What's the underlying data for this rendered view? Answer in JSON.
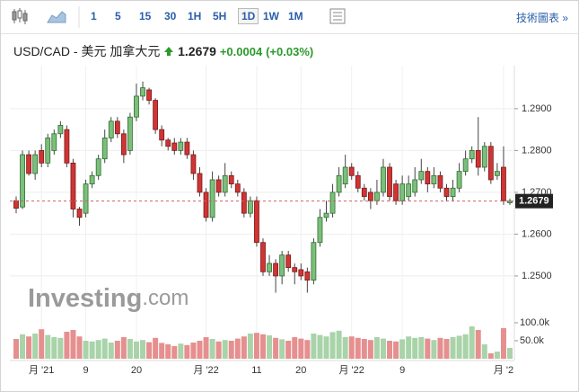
{
  "toolbar": {
    "intervals": [
      "1",
      "5",
      "15",
      "30",
      "1H",
      "5H",
      "1D",
      "1W",
      "1M"
    ],
    "selected": "1D",
    "link": "技術圖表 »"
  },
  "logo": {
    "name": "Investing",
    "suffix": ".com"
  },
  "chart_data": {
    "type": "candlestick",
    "title": "USD/CAD - 美元 加拿大元",
    "last_price": 1.2679,
    "change": "+0.0004",
    "change_percent": "(+0.03%)",
    "categories": [
      null,
      null,
      null,
      null,
      "月 '21",
      null,
      null,
      null,
      null,
      null,
      null,
      "9",
      null,
      null,
      null,
      null,
      null,
      null,
      null,
      "20",
      null,
      null,
      null,
      null,
      null,
      null,
      null,
      null,
      null,
      null,
      "月 '22",
      null,
      null,
      null,
      null,
      null,
      null,
      null,
      "11",
      null,
      null,
      null,
      null,
      null,
      null,
      "20",
      null,
      null,
      null,
      null,
      null,
      null,
      null,
      "月 '22",
      null,
      null,
      null,
      null,
      null,
      null,
      null,
      "9",
      null,
      null,
      null,
      null,
      null,
      null,
      null,
      null,
      null,
      null,
      null,
      null,
      null,
      null,
      null,
      "月 '2",
      null
    ],
    "open": [
      1.268,
      1.2665,
      1.279,
      1.2745,
      1.28,
      1.277,
      1.28,
      1.284,
      1.285,
      1.277,
      1.266,
      1.265,
      1.272,
      1.274,
      1.278,
      1.283,
      1.287,
      1.284,
      1.28,
      1.288,
      1.293,
      1.2945,
      1.292,
      1.285,
      1.2825,
      1.2818,
      1.28,
      1.282,
      1.279,
      1.2745,
      1.27,
      1.264,
      1.273,
      1.27,
      1.274,
      1.272,
      1.27,
      1.265,
      1.268,
      1.258,
      1.251,
      1.253,
      1.25,
      1.255,
      1.252,
      1.2515,
      1.251,
      1.249,
      1.258,
      1.264,
      1.265,
      1.27,
      1.272,
      1.276,
      1.274,
      1.271,
      1.27,
      1.268,
      1.27,
      1.276,
      1.272,
      1.268,
      1.269,
      1.27,
      1.273,
      1.275,
      1.272,
      1.274,
      1.271,
      1.269,
      1.271,
      1.275,
      1.278,
      1.28,
      1.276,
      1.281,
      1.274,
      1.276,
      1.2675
    ],
    "high": [
      1.269,
      1.28,
      1.28,
      1.28,
      1.2815,
      1.284,
      1.285,
      1.287,
      1.286,
      1.278,
      1.2665,
      1.273,
      1.275,
      1.279,
      1.285,
      1.288,
      1.288,
      1.285,
      1.289,
      1.296,
      1.2965,
      1.295,
      1.2925,
      1.286,
      1.283,
      1.283,
      1.283,
      1.283,
      1.28,
      1.276,
      1.271,
      1.275,
      1.274,
      1.277,
      1.275,
      1.273,
      1.271,
      1.269,
      1.269,
      1.259,
      1.255,
      1.254,
      1.256,
      1.256,
      1.253,
      1.253,
      1.252,
      1.259,
      1.266,
      1.268,
      1.272,
      1.276,
      1.279,
      1.277,
      1.275,
      1.272,
      1.271,
      1.273,
      1.278,
      1.277,
      1.273,
      1.274,
      1.274,
      1.276,
      1.278,
      1.276,
      1.276,
      1.275,
      1.272,
      1.273,
      1.277,
      1.28,
      1.281,
      1.288,
      1.282,
      1.282,
      1.277,
      1.281,
      1.2685
    ],
    "low": [
      1.265,
      1.266,
      1.274,
      1.273,
      1.276,
      1.276,
      1.279,
      1.283,
      1.276,
      1.264,
      1.262,
      1.264,
      1.271,
      1.273,
      1.277,
      1.282,
      1.283,
      1.277,
      1.279,
      1.287,
      1.292,
      1.291,
      1.284,
      1.281,
      1.28,
      1.279,
      1.279,
      1.278,
      1.273,
      1.269,
      1.263,
      1.263,
      1.269,
      1.269,
      1.271,
      1.269,
      1.264,
      1.264,
      1.257,
      1.25,
      1.25,
      1.246,
      1.248,
      1.251,
      1.248,
      1.249,
      1.246,
      1.248,
      1.257,
      1.263,
      1.264,
      1.269,
      1.271,
      1.273,
      1.27,
      1.268,
      1.266,
      1.267,
      1.269,
      1.268,
      1.267,
      1.267,
      1.268,
      1.269,
      1.272,
      1.27,
      1.271,
      1.27,
      1.268,
      1.268,
      1.27,
      1.274,
      1.277,
      1.274,
      1.275,
      1.272,
      1.273,
      1.267,
      1.267
    ],
    "close": [
      1.2662,
      1.279,
      1.2745,
      1.279,
      1.277,
      1.283,
      1.284,
      1.286,
      1.277,
      1.266,
      1.264,
      1.272,
      1.274,
      1.278,
      1.283,
      1.287,
      1.284,
      1.279,
      1.288,
      1.293,
      1.295,
      1.292,
      1.285,
      1.2825,
      1.281,
      1.28,
      1.282,
      1.279,
      1.2745,
      1.27,
      1.264,
      1.273,
      1.27,
      1.274,
      1.272,
      1.27,
      1.265,
      1.268,
      1.258,
      1.251,
      1.253,
      1.25,
      1.255,
      1.252,
      1.251,
      1.25,
      1.249,
      1.258,
      1.264,
      1.265,
      1.27,
      1.274,
      1.276,
      1.274,
      1.271,
      1.269,
      1.268,
      1.27,
      1.276,
      1.269,
      1.268,
      1.272,
      1.272,
      1.273,
      1.275,
      1.272,
      1.274,
      1.271,
      1.269,
      1.271,
      1.275,
      1.278,
      1.28,
      1.276,
      1.281,
      1.273,
      1.275,
      1.268,
      1.2679
    ],
    "volume": [
      55000,
      68000,
      62000,
      70000,
      82000,
      66000,
      60000,
      58000,
      75000,
      80000,
      62000,
      50000,
      48000,
      52000,
      56000,
      45000,
      50000,
      60000,
      55000,
      48000,
      52000,
      46000,
      58000,
      44000,
      40000,
      35000,
      42000,
      38000,
      45000,
      50000,
      60000,
      55000,
      48000,
      52000,
      50000,
      56000,
      62000,
      70000,
      72000,
      68000,
      65000,
      58000,
      54000,
      50000,
      60000,
      56000,
      52000,
      70000,
      66000,
      62000,
      74000,
      78000,
      60000,
      62000,
      58000,
      55000,
      52000,
      60000,
      56000,
      50000,
      48000,
      54000,
      62000,
      58000,
      60000,
      56000,
      52000,
      58000,
      55000,
      60000,
      64000,
      68000,
      90000,
      80000,
      40000,
      15000,
      20000,
      85000,
      30000
    ],
    "ylim": [
      1.2416,
      1.2975
    ],
    "yticks": [
      {
        "value": 1.25,
        "label": "1.2500"
      },
      {
        "value": 1.26,
        "label": "1.2600"
      },
      {
        "value": 1.27,
        "label": "1.2700"
      },
      {
        "value": 1.28,
        "label": "1.2800"
      },
      {
        "value": 1.29,
        "label": "1.2900"
      }
    ],
    "vlim": [
      0,
      125000
    ],
    "vticks": [
      {
        "value": 50000,
        "label": "50.0k"
      },
      {
        "value": 100000,
        "label": "100.0k"
      }
    ],
    "grid": true,
    "up_color": "#7cbf7c",
    "down_color": "#d03434",
    "up_volume_color": "#a9d3a9",
    "down_volume_color": "#e68f8f"
  }
}
